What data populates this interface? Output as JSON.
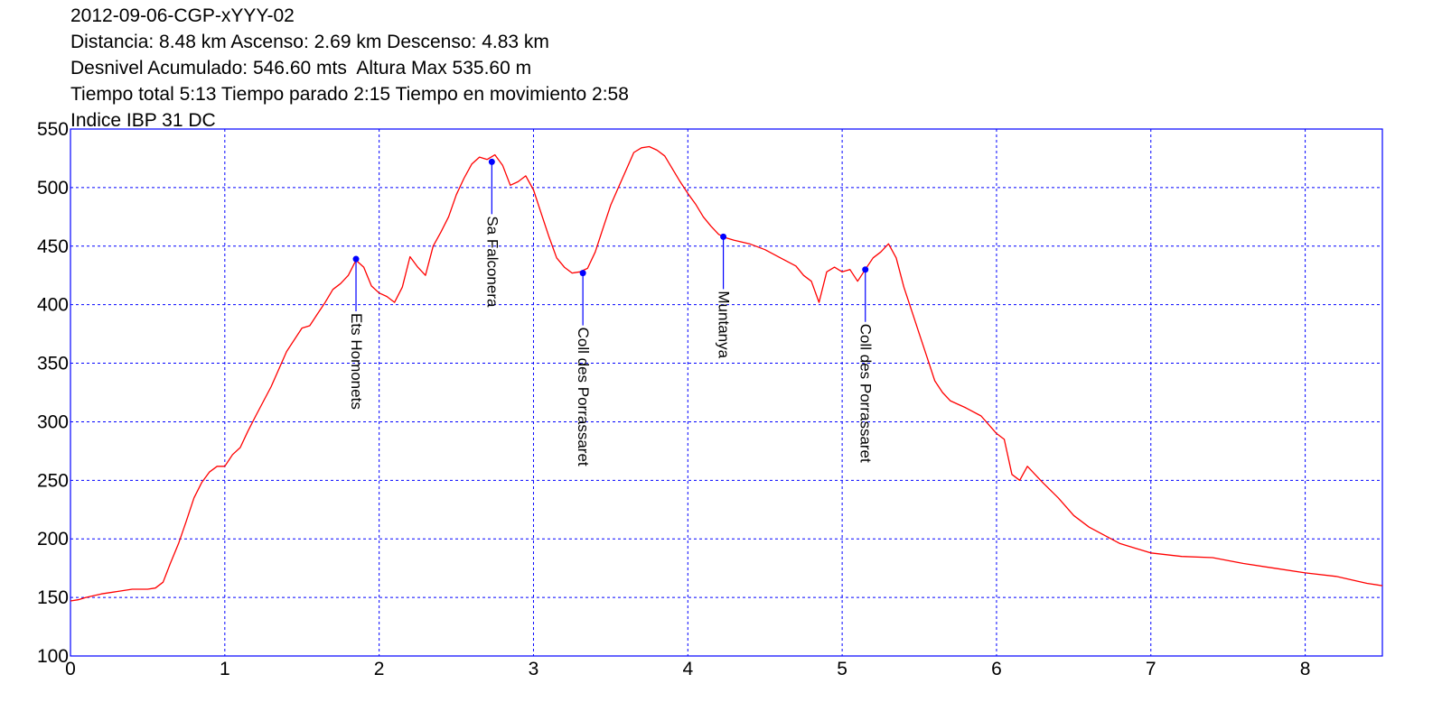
{
  "header": {
    "lines": [
      "2012-09-06-CGP-xYYY-02",
      "Distancia: 8.48 km Ascenso: 2.69 km Descenso: 4.83 km",
      "Desnivel Acumulado: 546.60 mts  Altura Max 535.60 m",
      "Tiempo total 5:13 Tiempo parado 2:15 Tiempo en movimiento 2:58",
      "Indice IBP 31 DC"
    ]
  },
  "chart_data": {
    "type": "line",
    "title": "2012-09-06-CGP-xYYY-02",
    "xlabel": "",
    "ylabel": "",
    "xlim": [
      0,
      8.5
    ],
    "ylim": [
      100,
      550
    ],
    "xticks": [
      0,
      1,
      2,
      3,
      4,
      5,
      6,
      7,
      8
    ],
    "yticks": [
      100,
      150,
      200,
      250,
      300,
      350,
      400,
      450,
      500,
      550
    ],
    "grid": true,
    "colors": {
      "line": "#ff0000",
      "grid": "#0000ff",
      "frame": "#0000ff",
      "waypoint": "#0000ff"
    },
    "series": [
      {
        "x": [
          0,
          0.05,
          0.1,
          0.2,
          0.3,
          0.4,
          0.5,
          0.55,
          0.6,
          0.65,
          0.7,
          0.75,
          0.8,
          0.85,
          0.9,
          0.95,
          1.0,
          1.05,
          1.1,
          1.15,
          1.2,
          1.3,
          1.4,
          1.5,
          1.55,
          1.6,
          1.65,
          1.7,
          1.75,
          1.8,
          1.85,
          1.9,
          1.95,
          2.0,
          2.05,
          2.1,
          2.15,
          2.2,
          2.25,
          2.3,
          2.35,
          2.4,
          2.45,
          2.5,
          2.55,
          2.6,
          2.65,
          2.7,
          2.75,
          2.8,
          2.85,
          2.9,
          2.95,
          3.0,
          3.05,
          3.1,
          3.15,
          3.2,
          3.25,
          3.3,
          3.35,
          3.4,
          3.45,
          3.5,
          3.55,
          3.6,
          3.65,
          3.7,
          3.75,
          3.8,
          3.85,
          3.9,
          3.95,
          4.0,
          4.05,
          4.1,
          4.15,
          4.2,
          4.25,
          4.3,
          4.4,
          4.5,
          4.6,
          4.7,
          4.75,
          4.8,
          4.85,
          4.9,
          4.95,
          5.0,
          5.05,
          5.1,
          5.15,
          5.2,
          5.25,
          5.3,
          5.35,
          5.4,
          5.45,
          5.5,
          5.55,
          5.6,
          5.65,
          5.7,
          5.75,
          5.8,
          5.9,
          6.0,
          6.05,
          6.1,
          6.15,
          6.2,
          6.25,
          6.3,
          6.4,
          6.5,
          6.6,
          6.7,
          6.8,
          6.9,
          7.0,
          7.2,
          7.4,
          7.6,
          7.8,
          8.0,
          8.2,
          8.4,
          8.5
        ],
        "y": [
          147,
          148,
          150,
          153,
          155,
          157,
          157,
          158,
          163,
          180,
          196,
          215,
          235,
          248,
          257,
          262,
          262,
          272,
          278,
          292,
          305,
          330,
          360,
          380,
          382,
          392,
          402,
          413,
          418,
          425,
          438,
          432,
          416,
          410,
          407,
          402,
          415,
          441,
          432,
          425,
          450,
          462,
          475,
          494,
          508,
          520,
          526,
          524,
          528,
          519,
          502,
          505,
          510,
          498,
          478,
          458,
          440,
          432,
          427,
          428,
          431,
          445,
          465,
          485,
          500,
          515,
          530,
          534,
          535,
          532,
          527,
          516,
          505,
          495,
          486,
          475,
          467,
          460,
          457,
          455,
          452,
          447,
          440,
          433,
          425,
          420,
          402,
          428,
          432,
          428,
          430,
          420,
          430,
          440,
          445,
          452,
          440,
          415,
          395,
          375,
          355,
          335,
          325,
          318,
          315,
          312,
          305,
          290,
          285,
          255,
          250,
          262,
          255,
          248,
          235,
          220,
          210,
          203,
          196,
          192,
          188,
          185,
          184,
          179,
          175,
          171,
          168,
          162,
          160
        ]
      }
    ],
    "waypoints": [
      {
        "name": "Ets Homonets",
        "x": 1.85,
        "y": 439
      },
      {
        "name": "Sa Falconera",
        "x": 2.73,
        "y": 522
      },
      {
        "name": "Coll des Porrassaret",
        "x": 3.32,
        "y": 427
      },
      {
        "name": "Muntanya",
        "x": 4.23,
        "y": 458
      },
      {
        "name": "Coll des Porrassaret",
        "x": 5.15,
        "y": 430
      }
    ]
  }
}
